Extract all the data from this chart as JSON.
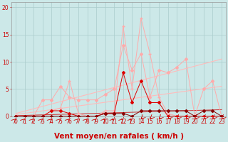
{
  "bg_color": "#cce8e8",
  "grid_color": "#aacccc",
  "xlabel": "Vent moyen/en rafales ( km/h )",
  "xlabel_color": "#cc0000",
  "ylabel_ticks": [
    0,
    5,
    10,
    15,
    20
  ],
  "xlim": [
    -0.5,
    23.5
  ],
  "ylim": [
    0,
    21
  ],
  "xticks": [
    0,
    1,
    2,
    3,
    4,
    5,
    6,
    7,
    8,
    9,
    10,
    11,
    12,
    13,
    14,
    15,
    16,
    17,
    18,
    19,
    20,
    21,
    22,
    23
  ],
  "line1_x": [
    0,
    1,
    2,
    3,
    4,
    5,
    6,
    7,
    8,
    9,
    10,
    11,
    12,
    13,
    14,
    15,
    16,
    17,
    18,
    19,
    20,
    21,
    22,
    23
  ],
  "line1_y": [
    0,
    0,
    0,
    3,
    3,
    5.5,
    3.5,
    3,
    3,
    3,
    4,
    5,
    13,
    8.5,
    11.5,
    3.5,
    8.5,
    8,
    9,
    10.5,
    0,
    5,
    6.5,
    0
  ],
  "line1_color": "#ffaaaa",
  "line1_marker": "D",
  "line1_ms": 2.0,
  "line2_x": [
    0,
    1,
    2,
    3,
    4,
    5,
    6,
    7,
    8,
    9,
    10,
    11,
    12,
    13,
    14,
    15,
    16,
    17,
    18,
    19,
    20,
    21,
    22,
    23
  ],
  "line2_y": [
    0,
    0,
    0,
    0,
    1,
    1.5,
    6.5,
    0.5,
    0,
    0,
    1,
    1,
    16.5,
    5,
    18,
    11.5,
    3.5,
    0.5,
    0,
    0,
    0,
    0,
    0,
    0
  ],
  "line2_color": "#ffaaaa",
  "line2_marker": "P",
  "line2_ms": 3.5,
  "line3_x": [
    0,
    1,
    2,
    3,
    4,
    5,
    6,
    7,
    8,
    9,
    10,
    11,
    12,
    13,
    14,
    15,
    16,
    17,
    18,
    19,
    20,
    21,
    22,
    23
  ],
  "line3_y": [
    0,
    0,
    0,
    0,
    1,
    1,
    0.5,
    0,
    0,
    0,
    0.5,
    0.5,
    8,
    2.5,
    6.5,
    2.5,
    2.5,
    0,
    0,
    0,
    0,
    0,
    0,
    0
  ],
  "line3_color": "#dd0000",
  "line3_marker": "D",
  "line3_ms": 2.0,
  "line4_x": [
    0,
    1,
    2,
    3,
    4,
    5,
    6,
    7,
    8,
    9,
    10,
    11,
    12,
    13,
    14,
    15,
    16,
    17,
    18,
    19,
    20,
    21,
    22,
    23
  ],
  "line4_y": [
    0,
    0,
    0,
    0,
    0,
    0,
    0,
    0,
    0,
    0,
    0.5,
    0.5,
    0.5,
    0,
    1,
    1,
    1,
    1,
    1,
    1,
    0,
    1,
    1,
    0
  ],
  "line4_color": "#880000",
  "line4_marker": "D",
  "line4_ms": 2.0,
  "trend1_x": [
    0,
    23
  ],
  "trend1_y": [
    0.5,
    10.5
  ],
  "trend1_color": "#ffbbbb",
  "trend2_x": [
    0,
    23
  ],
  "trend2_y": [
    0.3,
    5.5
  ],
  "trend2_color": "#ffbbbb",
  "trend3_x": [
    0,
    23
  ],
  "trend3_y": [
    0.1,
    1.2
  ],
  "trend3_color": "#cc3333",
  "arrow_color": "#cc0000",
  "tick_color": "#cc0000",
  "tick_fontsize": 5.5,
  "xlabel_fontsize": 7.5
}
